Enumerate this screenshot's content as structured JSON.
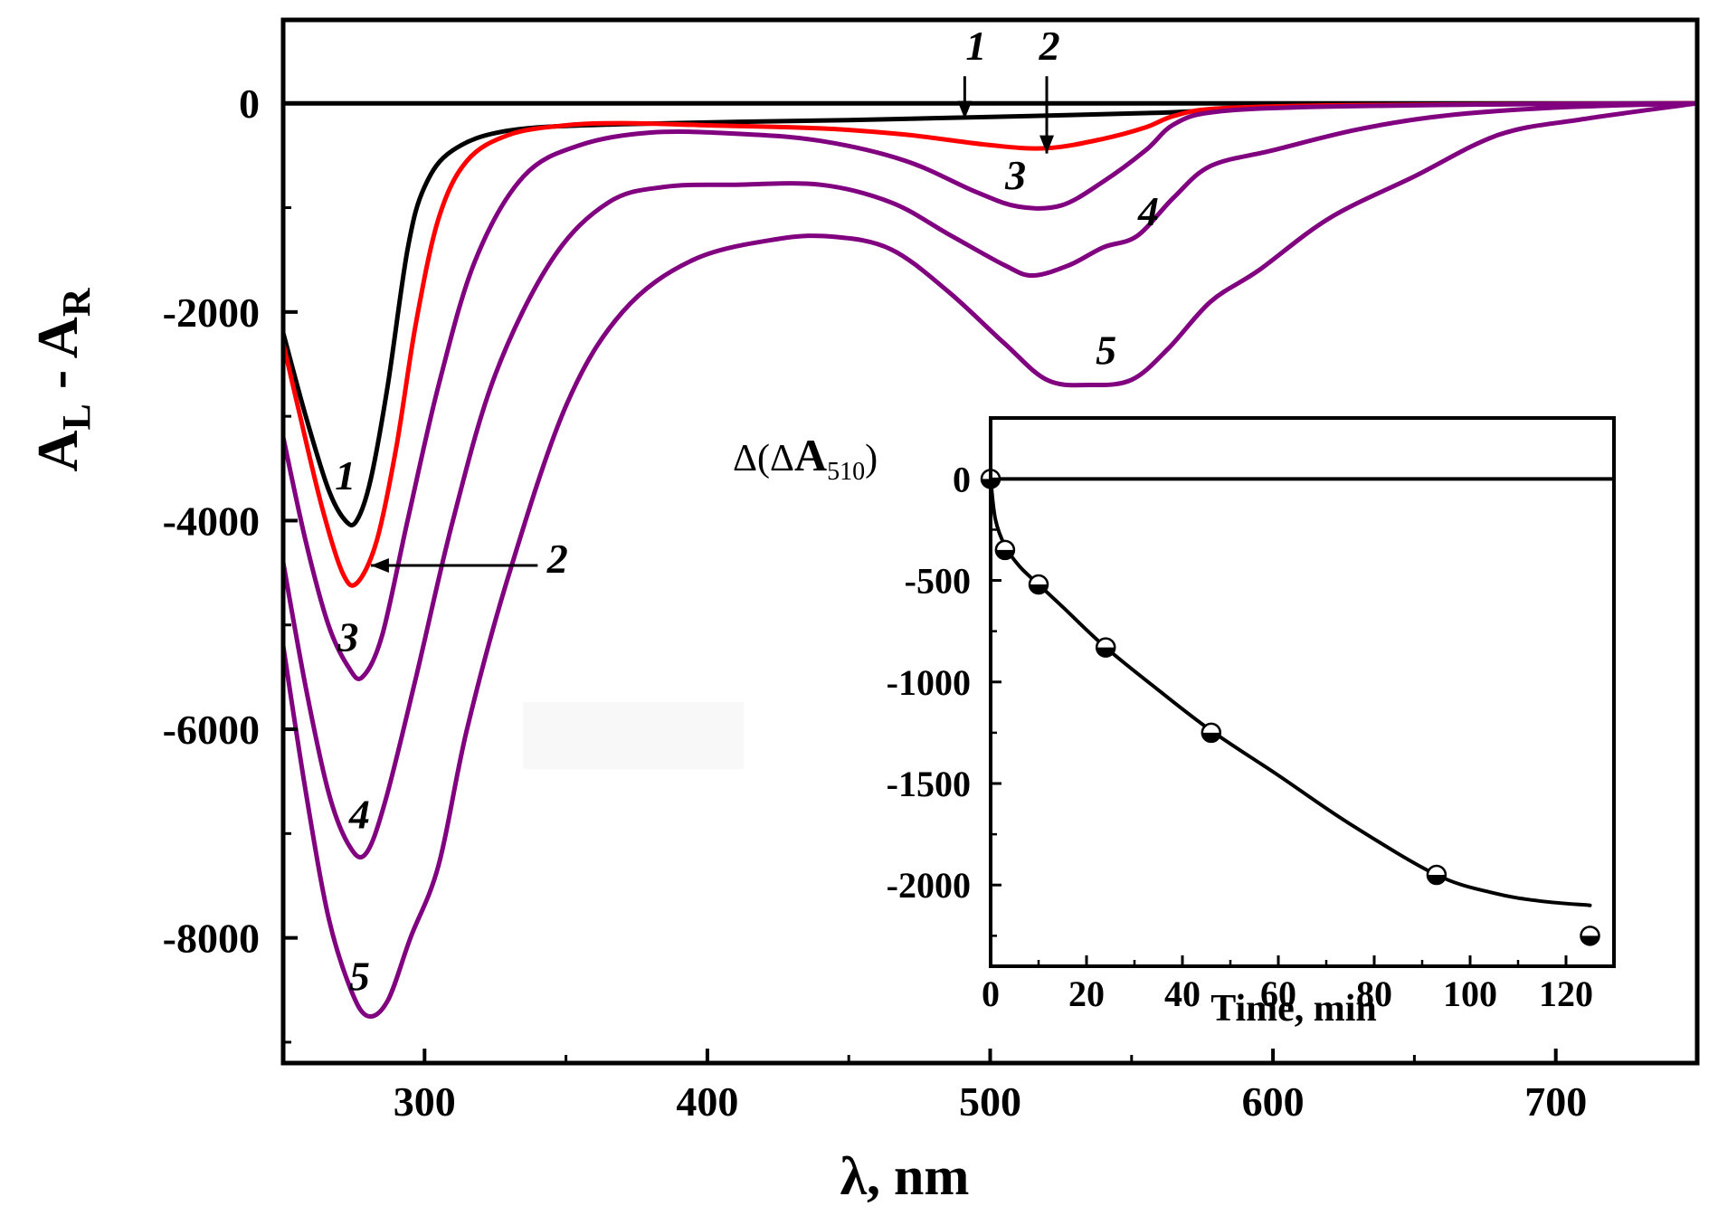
{
  "chart_data": [
    {
      "type": "line",
      "xlabel": "λ, nm",
      "ylabel": {
        "main": "A",
        "sub1": "L",
        "minus": " - ",
        "main2": "A",
        "sub2": "R"
      },
      "xlim": [
        250,
        750
      ],
      "ylim": [
        -9200,
        800
      ],
      "x_ticks": [
        300,
        400,
        500,
        600,
        700
      ],
      "y_ticks": [
        0,
        -2000,
        -4000,
        -6000,
        -8000
      ],
      "zero_line": 0,
      "color_black": "#000000",
      "color_red": "#ff0000",
      "color_purple": "#800080",
      "series": [
        {
          "name": "1",
          "color": "#000000",
          "points": [
            [
              250,
              -2200
            ],
            [
              258,
              -3000
            ],
            [
              266,
              -3700
            ],
            [
              272,
              -4000
            ],
            [
              276,
              -4000
            ],
            [
              281,
              -3600
            ],
            [
              287,
              -2700
            ],
            [
              294,
              -1400
            ],
            [
              300,
              -800
            ],
            [
              310,
              -450
            ],
            [
              330,
              -260
            ],
            [
              370,
              -200
            ],
            [
              450,
              -160
            ],
            [
              500,
              -130
            ],
            [
              560,
              -90
            ],
            [
              600,
              -40
            ],
            [
              650,
              -15
            ],
            [
              700,
              -5
            ],
            [
              750,
              0
            ]
          ]
        },
        {
          "name": "2",
          "color": "#ff0000",
          "points": [
            [
              250,
              -2300
            ],
            [
              256,
              -3000
            ],
            [
              264,
              -3900
            ],
            [
              271,
              -4500
            ],
            [
              276,
              -4600
            ],
            [
              283,
              -4200
            ],
            [
              290,
              -3300
            ],
            [
              297,
              -2100
            ],
            [
              305,
              -1100
            ],
            [
              315,
              -550
            ],
            [
              330,
              -300
            ],
            [
              350,
              -210
            ],
            [
              370,
              -190
            ],
            [
              400,
              -210
            ],
            [
              440,
              -240
            ],
            [
              470,
              -300
            ],
            [
              500,
              -400
            ],
            [
              520,
              -430
            ],
            [
              540,
              -340
            ],
            [
              555,
              -230
            ],
            [
              565,
              -120
            ],
            [
              580,
              -50
            ],
            [
              620,
              -20
            ],
            [
              700,
              -5
            ],
            [
              750,
              0
            ]
          ]
        },
        {
          "name": "3",
          "color": "#800080",
          "points": [
            [
              250,
              -3200
            ],
            [
              258,
              -4200
            ],
            [
              266,
              -5000
            ],
            [
              273,
              -5400
            ],
            [
              278,
              -5500
            ],
            [
              285,
              -5100
            ],
            [
              294,
              -4000
            ],
            [
              305,
              -2700
            ],
            [
              318,
              -1500
            ],
            [
              335,
              -700
            ],
            [
              355,
              -400
            ],
            [
              380,
              -280
            ],
            [
              410,
              -290
            ],
            [
              440,
              -360
            ],
            [
              470,
              -550
            ],
            [
              495,
              -850
            ],
            [
              510,
              -990
            ],
            [
              525,
              -980
            ],
            [
              540,
              -750
            ],
            [
              555,
              -450
            ],
            [
              565,
              -200
            ],
            [
              580,
              -80
            ],
            [
              620,
              -30
            ],
            [
              700,
              -5
            ],
            [
              750,
              0
            ]
          ]
        },
        {
          "name": "4",
          "color": "#800080",
          "points": [
            [
              250,
              -4400
            ],
            [
              258,
              -5600
            ],
            [
              266,
              -6600
            ],
            [
              273,
              -7100
            ],
            [
              279,
              -7200
            ],
            [
              286,
              -6700
            ],
            [
              297,
              -5500
            ],
            [
              310,
              -4000
            ],
            [
              325,
              -2600
            ],
            [
              345,
              -1500
            ],
            [
              365,
              -950
            ],
            [
              385,
              -800
            ],
            [
              410,
              -780
            ],
            [
              440,
              -780
            ],
            [
              465,
              -950
            ],
            [
              485,
              -1250
            ],
            [
              505,
              -1550
            ],
            [
              515,
              -1650
            ],
            [
              528,
              -1550
            ],
            [
              540,
              -1380
            ],
            [
              552,
              -1270
            ],
            [
              565,
              -900
            ],
            [
              578,
              -600
            ],
            [
              600,
              -450
            ],
            [
              630,
              -250
            ],
            [
              660,
              -120
            ],
            [
              700,
              -40
            ],
            [
              750,
              0
            ]
          ]
        },
        {
          "name": "5",
          "color": "#800080",
          "points": [
            [
              250,
              -5200
            ],
            [
              258,
              -6600
            ],
            [
              266,
              -7800
            ],
            [
              274,
              -8500
            ],
            [
              280,
              -8750
            ],
            [
              287,
              -8600
            ],
            [
              295,
              -8000
            ],
            [
              305,
              -7300
            ],
            [
              315,
              -6000
            ],
            [
              330,
              -4500
            ],
            [
              350,
              -2900
            ],
            [
              370,
              -2000
            ],
            [
              395,
              -1500
            ],
            [
              425,
              -1300
            ],
            [
              445,
              -1280
            ],
            [
              465,
              -1400
            ],
            [
              485,
              -1800
            ],
            [
              505,
              -2300
            ],
            [
              520,
              -2650
            ],
            [
              535,
              -2700
            ],
            [
              550,
              -2650
            ],
            [
              563,
              -2350
            ],
            [
              578,
              -1900
            ],
            [
              595,
              -1600
            ],
            [
              620,
              -1100
            ],
            [
              650,
              -700
            ],
            [
              680,
              -300
            ],
            [
              710,
              -150
            ],
            [
              750,
              0
            ]
          ]
        }
      ],
      "curve_labels": [
        {
          "text": "1",
          "x": 272,
          "y": -3700
        },
        {
          "text": "2",
          "x": 347,
          "y": -4500
        },
        {
          "text": "3",
          "x": 273,
          "y": -5250
        },
        {
          "text": "4",
          "x": 277,
          "y": -6950
        },
        {
          "text": "5",
          "x": 277,
          "y": -8500
        },
        {
          "text": "1",
          "x": 495,
          "y": 420
        },
        {
          "text": "2",
          "x": 521,
          "y": 420
        },
        {
          "text": "3",
          "x": 509,
          "y": -820
        },
        {
          "text": "4",
          "x": 556,
          "y": -1170
        },
        {
          "text": "5",
          "x": 541,
          "y": -2500
        }
      ],
      "arrows": [
        {
          "from": [
            491,
            260
          ],
          "to": [
            491,
            -150
          ]
        },
        {
          "from": [
            520,
            260
          ],
          "to": [
            520,
            -480
          ]
        },
        {
          "from": [
            340,
            -4430
          ],
          "to": [
            281,
            -4430
          ]
        }
      ]
    },
    {
      "type": "scatter",
      "inset": true,
      "ylabel": {
        "prefix": "Δ(Δ",
        "main": "A",
        "sub": "510",
        "suffix": ")"
      },
      "xlabel": "Time, min",
      "xlim": [
        0,
        130
      ],
      "ylim": [
        -2400,
        300
      ],
      "x_ticks": [
        0,
        20,
        40,
        60,
        80,
        100,
        120
      ],
      "y_ticks": [
        0,
        -500,
        -1000,
        -1500,
        -2000
      ],
      "points": [
        [
          0,
          0
        ],
        [
          3,
          -350
        ],
        [
          10,
          -520
        ],
        [
          24,
          -830
        ],
        [
          46,
          -1250
        ],
        [
          93,
          -1950
        ],
        [
          125,
          -2250
        ]
      ],
      "fit_curve": [
        [
          0,
          0
        ],
        [
          1,
          -200
        ],
        [
          3,
          -330
        ],
        [
          6,
          -430
        ],
        [
          10,
          -520
        ],
        [
          15,
          -630
        ],
        [
          24,
          -830
        ],
        [
          35,
          -1040
        ],
        [
          46,
          -1240
        ],
        [
          60,
          -1460
        ],
        [
          75,
          -1700
        ],
        [
          93,
          -1950
        ],
        [
          105,
          -2040
        ],
        [
          115,
          -2080
        ],
        [
          125,
          -2100
        ]
      ]
    }
  ]
}
